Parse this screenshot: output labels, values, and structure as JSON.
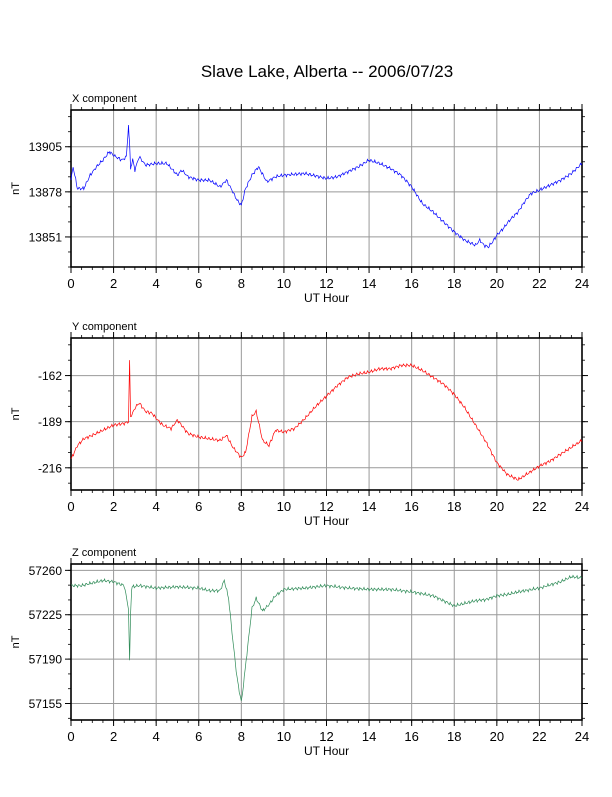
{
  "title": "Slave Lake, Alberta -- 2006/07/23",
  "chart_data": [
    {
      "type": "line",
      "panel_label": "X component",
      "xlabel": "UT Hour",
      "ylabel": "nT",
      "xlim": [
        0,
        24
      ],
      "ylim": [
        13833,
        13927
      ],
      "xticks": [
        0,
        2,
        4,
        6,
        8,
        10,
        12,
        14,
        16,
        18,
        20,
        22,
        24
      ],
      "yticks": [
        13851,
        13878,
        13905
      ],
      "grid": true,
      "series": [
        {
          "color": "#0000ff",
          "x": [
            0,
            0.1,
            0.3,
            0.6,
            0.9,
            1.2,
            1.5,
            1.8,
            2.1,
            2.4,
            2.6,
            2.7,
            2.75,
            2.8,
            2.85,
            2.9,
            3.0,
            3.2,
            3.5,
            4.0,
            4.5,
            5.0,
            5.2,
            5.5,
            6.0,
            6.5,
            7.0,
            7.3,
            7.6,
            7.8,
            8.0,
            8.2,
            8.5,
            8.8,
            9.2,
            9.6,
            10.0,
            11.0,
            12.0,
            12.5,
            13.0,
            13.5,
            14.0,
            14.5,
            15.0,
            15.5,
            16.0,
            16.5,
            17.0,
            17.5,
            18.0,
            18.5,
            19.0,
            19.2,
            19.4,
            19.6,
            19.8,
            20.0,
            20.3,
            20.6,
            21.0,
            21.3,
            21.6,
            22.0,
            22.5,
            23.0,
            23.5,
            24.0
          ],
          "y": [
            13885,
            13893,
            13880,
            13880,
            13888,
            13893,
            13897,
            13902,
            13899,
            13897,
            13899,
            13918,
            13906,
            13892,
            13895,
            13897,
            13891,
            13899,
            13894,
            13895,
            13895,
            13888,
            13891,
            13887,
            13885,
            13885,
            13881,
            13885,
            13878,
            13873,
            13870,
            13880,
            13888,
            13893,
            13884,
            13887,
            13888,
            13889,
            13886,
            13887,
            13890,
            13893,
            13897,
            13895,
            13892,
            13888,
            13881,
            13871,
            13866,
            13860,
            13854,
            13849,
            13846,
            13849,
            13846,
            13845,
            13848,
            13852,
            13856,
            13861,
            13866,
            13872,
            13877,
            13879,
            13882,
            13885,
            13889,
            13895
          ]
        }
      ]
    },
    {
      "type": "line",
      "panel_label": "Y component",
      "xlabel": "UT Hour",
      "ylabel": "nT",
      "xlim": [
        0,
        24
      ],
      "ylim": [
        -229,
        -140
      ],
      "xticks": [
        0,
        2,
        4,
        6,
        8,
        10,
        12,
        14,
        16,
        18,
        20,
        22,
        24
      ],
      "yticks": [
        -216,
        -189,
        -162
      ],
      "grid": true,
      "series": [
        {
          "color": "#ff0000",
          "x": [
            0,
            0.3,
            0.6,
            1.0,
            1.5,
            2.0,
            2.5,
            2.7,
            2.75,
            2.8,
            2.9,
            3.0,
            3.2,
            3.5,
            3.8,
            4.0,
            4.3,
            4.7,
            5.0,
            5.5,
            6.0,
            6.5,
            7.0,
            7.3,
            7.6,
            7.8,
            8.0,
            8.2,
            8.5,
            8.7,
            9.0,
            9.3,
            9.6,
            10.0,
            10.5,
            11.0,
            11.5,
            12.0,
            12.5,
            13.0,
            13.5,
            14.0,
            14.5,
            15.0,
            15.5,
            16.0,
            16.5,
            17.0,
            17.5,
            18.0,
            18.5,
            19.0,
            19.5,
            20.0,
            20.5,
            21.0,
            21.5,
            22.0,
            22.5,
            23.0,
            23.5,
            24.0
          ],
          "y": [
            -211,
            -203,
            -199,
            -197,
            -194,
            -191,
            -190,
            -189,
            -154,
            -186,
            -184,
            -181,
            -178,
            -183,
            -184,
            -187,
            -191,
            -193,
            -188,
            -196,
            -198,
            -199,
            -200,
            -197,
            -204,
            -207,
            -210,
            -207,
            -186,
            -183,
            -200,
            -203,
            -194,
            -195,
            -193,
            -187,
            -180,
            -174,
            -168,
            -163,
            -161,
            -160,
            -158,
            -158,
            -156,
            -156,
            -159,
            -163,
            -167,
            -173,
            -181,
            -191,
            -201,
            -213,
            -220,
            -223,
            -219,
            -215,
            -212,
            -208,
            -204,
            -200
          ]
        }
      ]
    },
    {
      "type": "line",
      "panel_label": "Z component",
      "xlabel": "UT Hour",
      "ylabel": "nT",
      "xlim": [
        0,
        24
      ],
      "ylim": [
        57142,
        57265
      ],
      "xticks": [
        0,
        2,
        4,
        6,
        8,
        10,
        12,
        14,
        16,
        18,
        20,
        22,
        24
      ],
      "yticks": [
        57155,
        57190,
        57225,
        57260
      ],
      "grid": true,
      "series": [
        {
          "color": "#2e8b57",
          "x": [
            0,
            0.5,
            1.0,
            1.5,
            2.0,
            2.5,
            2.7,
            2.75,
            2.8,
            2.85,
            2.9,
            3.2,
            4.0,
            5.0,
            6.0,
            6.5,
            7.0,
            7.2,
            7.4,
            7.6,
            7.8,
            7.9,
            8.0,
            8.1,
            8.3,
            8.5,
            8.7,
            9.0,
            9.3,
            9.6,
            10.0,
            11.0,
            12.0,
            13.0,
            14.0,
            15.0,
            16.0,
            17.0,
            17.5,
            18.0,
            18.5,
            19.0,
            19.5,
            20.0,
            20.5,
            21.0,
            22.0,
            23.0,
            23.5,
            24.0
          ],
          "y": [
            57248,
            57248,
            57250,
            57252,
            57251,
            57248,
            57230,
            57188,
            57226,
            57246,
            57247,
            57248,
            57246,
            57247,
            57246,
            57244,
            57244,
            57252,
            57238,
            57205,
            57175,
            57165,
            57156,
            57170,
            57200,
            57230,
            57238,
            57228,
            57233,
            57240,
            57245,
            57246,
            57248,
            57246,
            57245,
            57245,
            57243,
            57240,
            57236,
            57232,
            57234,
            57236,
            57237,
            57240,
            57241,
            57243,
            57246,
            57251,
            57255,
            57254
          ]
        }
      ]
    }
  ]
}
